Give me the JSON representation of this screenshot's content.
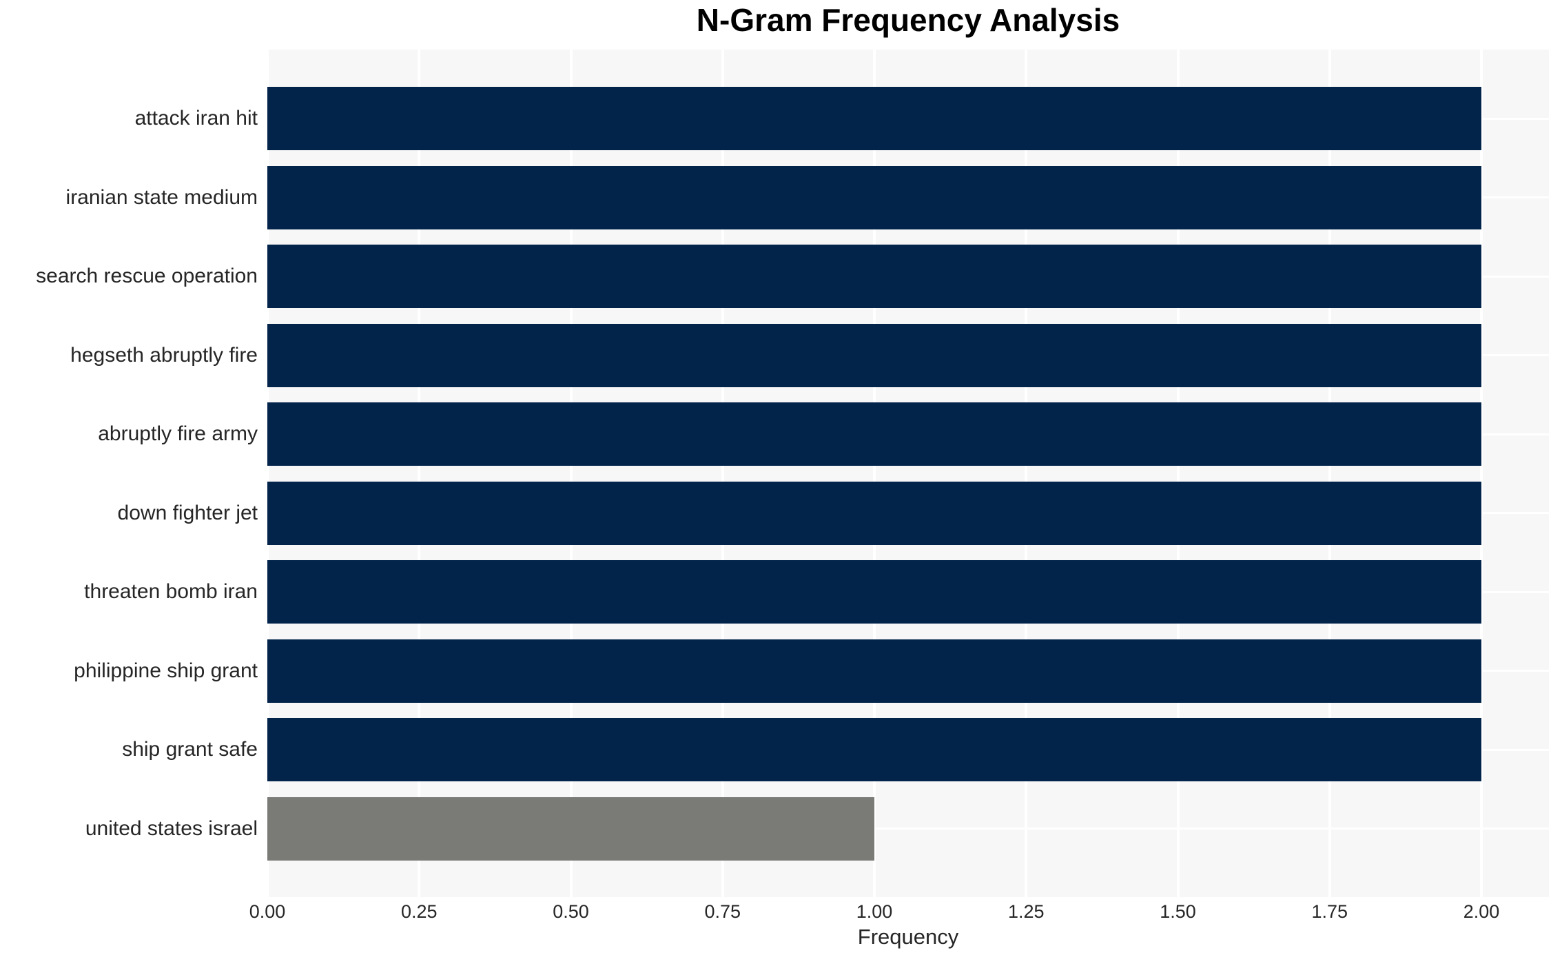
{
  "chart_data": {
    "type": "bar",
    "orientation": "horizontal",
    "title": "N-Gram Frequency Analysis",
    "xlabel": "Frequency",
    "ylabel": "",
    "categories": [
      "attack iran hit",
      "iranian state medium",
      "search rescue operation",
      "hegseth abruptly fire",
      "abruptly fire army",
      "down fighter jet",
      "threaten bomb iran",
      "philippine ship grant",
      "ship grant safe",
      "united states israel"
    ],
    "values": [
      2.0,
      2.0,
      2.0,
      2.0,
      2.0,
      2.0,
      2.0,
      2.0,
      2.0,
      1.0
    ],
    "bar_colors": [
      "#02234a",
      "#02234a",
      "#02234a",
      "#02234a",
      "#02234a",
      "#02234a",
      "#02234a",
      "#02234a",
      "#02234a",
      "#7a7a77"
    ],
    "x_ticks": [
      "0.00",
      "0.25",
      "0.50",
      "0.75",
      "1.00",
      "1.25",
      "1.50",
      "1.75",
      "2.00"
    ],
    "x_tick_values": [
      0,
      0.25,
      0.5,
      0.75,
      1.0,
      1.25,
      1.5,
      1.75,
      2.0
    ],
    "xlim": [
      0,
      2.11
    ],
    "grid": true,
    "legend": false,
    "colors": {
      "default_bar": "#02234a",
      "highlight_bar": "#7a7a77",
      "plot_background": "#f7f7f7",
      "gridline": "#ffffff",
      "tick_text": "#262626",
      "title_text": "#000000"
    }
  }
}
